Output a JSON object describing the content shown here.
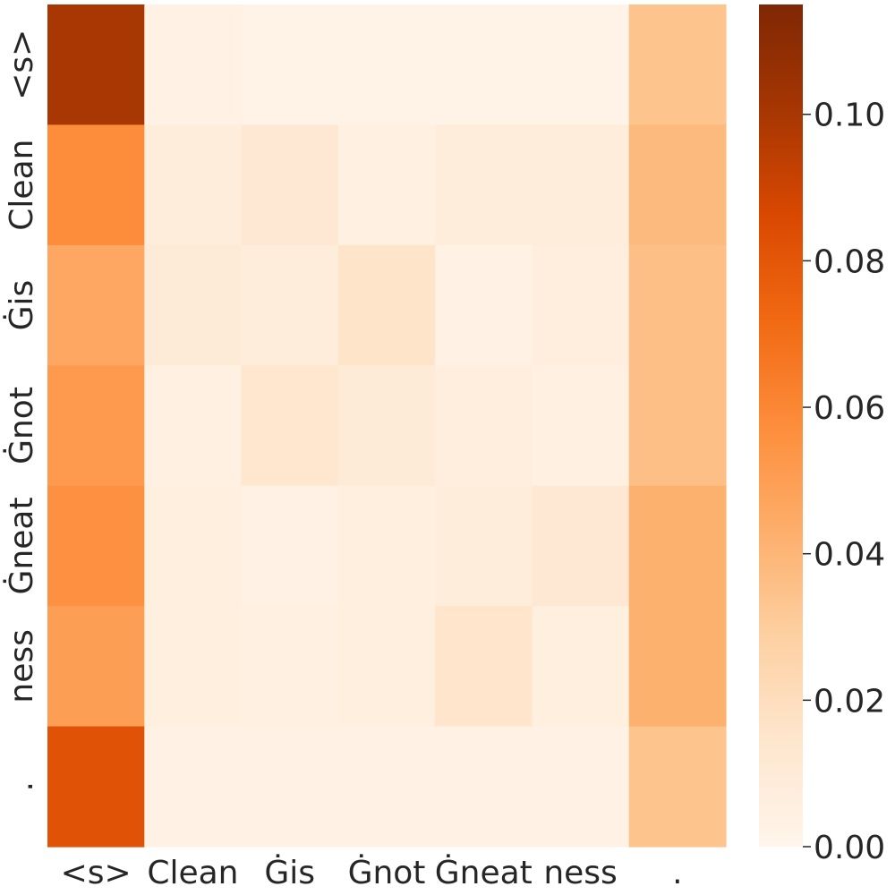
{
  "chart_data": {
    "type": "heatmap",
    "title": "",
    "xlabel": "",
    "ylabel": "",
    "x_labels": [
      "<s>",
      "Clean",
      "Ġis",
      "Ġnot",
      "Ġneat",
      "ness",
      "."
    ],
    "y_labels": [
      "<s>",
      "Clean",
      "Ġis",
      "Ġnot",
      "Ġneat",
      "ness",
      "."
    ],
    "values": [
      [
        0.1,
        0.004,
        0.002,
        0.002,
        0.002,
        0.002,
        0.034
      ],
      [
        0.058,
        0.008,
        0.012,
        0.005,
        0.008,
        0.008,
        0.038
      ],
      [
        0.046,
        0.01,
        0.008,
        0.016,
        0.003,
        0.007,
        0.036
      ],
      [
        0.052,
        0.005,
        0.014,
        0.01,
        0.007,
        0.005,
        0.036
      ],
      [
        0.056,
        0.006,
        0.004,
        0.006,
        0.008,
        0.012,
        0.042
      ],
      [
        0.05,
        0.006,
        0.005,
        0.006,
        0.015,
        0.006,
        0.042
      ],
      [
        0.082,
        0.003,
        0.003,
        0.003,
        0.003,
        0.003,
        0.034
      ]
    ],
    "colorbar": {
      "min": 0.0,
      "max": 0.115,
      "ticks": [
        0.0,
        0.02,
        0.04,
        0.06,
        0.08,
        0.1
      ],
      "tick_labels": [
        "0.00",
        "0.02",
        "0.04",
        "0.06",
        "0.08",
        "0.10"
      ],
      "colormap": "Oranges",
      "color_stops": [
        "#fff5eb",
        "#fee6ce",
        "#fdd0a2",
        "#fdae6b",
        "#fd8d3c",
        "#f16913",
        "#d94801",
        "#a63603",
        "#7f2704"
      ]
    },
    "grid": false,
    "legend": "none"
  }
}
